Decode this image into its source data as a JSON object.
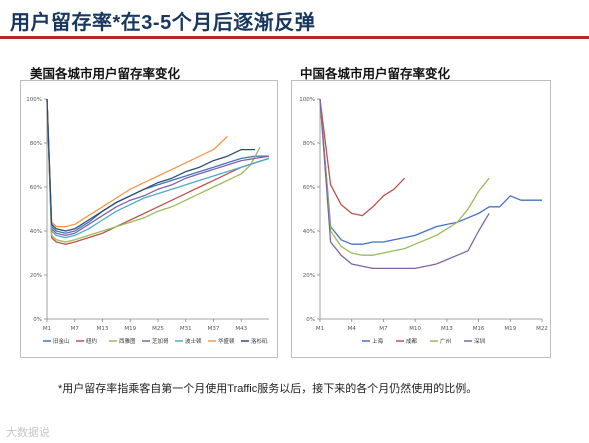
{
  "page": {
    "title": "用户留存率*在3-5个月后逐渐反弹",
    "footnote": "*用户留存率指乘客自第一个月使用Traffic服务以后，接下来的各个月仍然使用的比例。",
    "watermark": "大数据说"
  },
  "chart_data": [
    {
      "type": "line",
      "title": "美国各城市用户留存率变化",
      "xlabel": "",
      "ylabel": "",
      "x_tick_labels": [
        "M1",
        "M7",
        "M13",
        "M19",
        "M25",
        "M31",
        "M37",
        "M43"
      ],
      "y_tick_labels": [
        "0%",
        "20%",
        "40%",
        "60%",
        "80%",
        "100%"
      ],
      "ylim": [
        0,
        100
      ],
      "xlim": [
        1,
        49
      ],
      "legend": "bottom",
      "series": [
        {
          "name": "旧金山",
          "color": "#4472c4",
          "x": [
            1,
            2,
            3,
            5,
            7,
            10,
            13,
            16,
            19,
            22,
            25,
            28,
            31,
            34,
            37,
            40,
            43,
            46,
            49
          ],
          "values": [
            100,
            42,
            40,
            39,
            40,
            44,
            49,
            53,
            56,
            59,
            61,
            63,
            65,
            67,
            69,
            71,
            73,
            74,
            74
          ]
        },
        {
          "name": "纽约",
          "color": "#c0504d",
          "x": [
            1,
            2,
            3,
            5,
            7,
            10,
            13,
            16,
            19,
            22,
            25,
            28,
            31,
            34,
            37,
            40,
            43,
            46,
            49
          ],
          "values": [
            100,
            37,
            35,
            34,
            35,
            37,
            39,
            42,
            45,
            48,
            51,
            54,
            57,
            60,
            63,
            66,
            69,
            71,
            73
          ]
        },
        {
          "name": "西雅图",
          "color": "#9bbb59",
          "x": [
            1,
            2,
            3,
            5,
            7,
            10,
            13,
            16,
            19,
            22,
            25,
            28,
            31,
            34,
            37,
            40,
            43,
            45,
            47
          ],
          "values": [
            100,
            38,
            36,
            35,
            36,
            38,
            40,
            42,
            44,
            46,
            49,
            51,
            54,
            57,
            60,
            63,
            66,
            70,
            78
          ]
        },
        {
          "name": "芝加哥",
          "color": "#8064a2",
          "x": [
            1,
            2,
            3,
            5,
            7,
            10,
            13,
            16,
            19,
            22,
            25,
            28,
            31,
            34,
            37,
            40,
            43,
            46,
            49
          ],
          "values": [
            100,
            41,
            39,
            38,
            39,
            43,
            47,
            51,
            54,
            56,
            59,
            61,
            64,
            66,
            68,
            70,
            72,
            73,
            74
          ]
        },
        {
          "name": "波士顿",
          "color": "#4bacc6",
          "x": [
            1,
            2,
            3,
            5,
            7,
            10,
            13,
            16,
            19,
            22,
            25,
            28,
            31,
            34,
            37,
            40,
            43,
            46,
            49
          ],
          "values": [
            100,
            40,
            38,
            37,
            38,
            41,
            45,
            49,
            52,
            55,
            57,
            59,
            61,
            63,
            65,
            67,
            69,
            71,
            73
          ]
        },
        {
          "name": "华盛顿",
          "color": "#f79646",
          "x": [
            1,
            2,
            3,
            5,
            7,
            10,
            13,
            16,
            19,
            22,
            25,
            28,
            31,
            34,
            37,
            40
          ],
          "values": [
            100,
            44,
            42,
            42,
            43,
            47,
            51,
            55,
            59,
            62,
            65,
            68,
            71,
            74,
            77,
            83
          ]
        },
        {
          "name": "洛杉矶",
          "color": "#2c4d75",
          "x": [
            1,
            2,
            3,
            5,
            7,
            10,
            13,
            16,
            19,
            22,
            25,
            28,
            31,
            34,
            37,
            40,
            43,
            46
          ],
          "values": [
            100,
            43,
            41,
            40,
            41,
            45,
            49,
            53,
            56,
            59,
            62,
            64,
            67,
            69,
            72,
            74,
            77,
            77
          ]
        }
      ]
    },
    {
      "type": "line",
      "title": "中国各城市用户留存率变化",
      "xlabel": "",
      "ylabel": "",
      "x_tick_labels": [
        "M1",
        "M4",
        "M7",
        "M10",
        "M13",
        "M16",
        "M19",
        "M22"
      ],
      "y_tick_labels": [
        "0%",
        "20%",
        "40%",
        "60%",
        "80%",
        "100%"
      ],
      "ylim": [
        0,
        100
      ],
      "xlim": [
        1,
        22
      ],
      "legend": "bottom",
      "series": [
        {
          "name": "上海",
          "color": "#4472c4",
          "x": [
            1,
            2,
            3,
            4,
            5,
            6,
            7,
            8,
            9,
            10,
            11,
            12,
            13,
            14,
            15,
            16,
            17,
            18,
            19,
            20,
            21,
            22
          ],
          "values": [
            100,
            42,
            36,
            34,
            34,
            35,
            35,
            36,
            37,
            38,
            40,
            42,
            43,
            44,
            46,
            48,
            51,
            51,
            56,
            54,
            54,
            54
          ]
        },
        {
          "name": "成都",
          "color": "#c0504d",
          "x": [
            1,
            2,
            3,
            4,
            5,
            6,
            7,
            8,
            9
          ],
          "values": [
            100,
            61,
            52,
            48,
            47,
            51,
            56,
            59,
            64
          ]
        },
        {
          "name": "广州",
          "color": "#9bbb59",
          "x": [
            1,
            2,
            3,
            4,
            5,
            6,
            7,
            8,
            9,
            10,
            11,
            12,
            13,
            14,
            15,
            16,
            17
          ],
          "values": [
            100,
            40,
            33,
            30,
            29,
            29,
            30,
            31,
            32,
            34,
            36,
            38,
            41,
            44,
            50,
            58,
            64
          ]
        },
        {
          "name": "深圳",
          "color": "#8064a2",
          "x": [
            1,
            2,
            3,
            4,
            5,
            6,
            7,
            8,
            9,
            10,
            11,
            12,
            13,
            14,
            15,
            16,
            17
          ],
          "values": [
            100,
            35,
            29,
            25,
            24,
            23,
            23,
            23,
            23,
            23,
            24,
            25,
            27,
            29,
            31,
            40,
            48
          ]
        }
      ]
    }
  ]
}
